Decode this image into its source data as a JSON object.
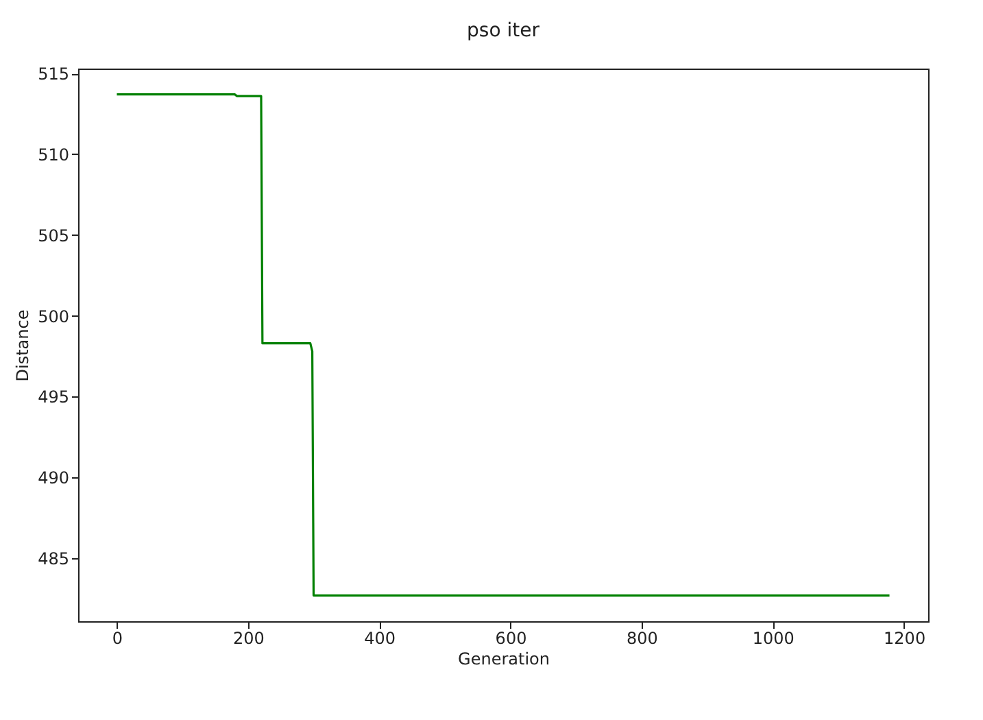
{
  "chart_data": {
    "type": "line",
    "title": "pso iter",
    "xlabel": "Generation",
    "ylabel": "Distance",
    "x": [
      0,
      180,
      183,
      220,
      222,
      295,
      298,
      300,
      1178
    ],
    "series": [
      {
        "color": "#008000",
        "values": [
          513.7,
          513.7,
          513.6,
          513.6,
          498.3,
          498.3,
          497.8,
          482.7,
          482.7
        ]
      }
    ],
    "xlim": [
      -59,
      1237
    ],
    "xticks": [
      0,
      200,
      400,
      600,
      800,
      1000,
      1200
    ],
    "ylim": [
      481.1,
      515.3
    ],
    "yticks": [
      485,
      490,
      495,
      500,
      505,
      510,
      515
    ],
    "grid": false,
    "marker": "none",
    "line_style": "solid"
  }
}
